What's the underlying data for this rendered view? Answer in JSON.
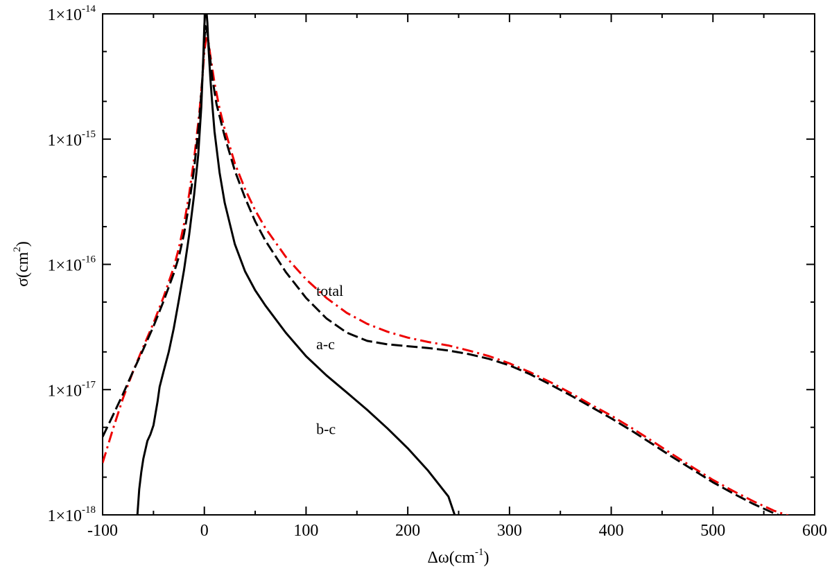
{
  "chart_data": {
    "type": "line",
    "title": "",
    "xlabel": {
      "main": "Δω(cm",
      "sup": "-1",
      "close": ")"
    },
    "ylabel": {
      "main": "σ(cm",
      "sup": "2",
      "close": ")"
    },
    "xlim": [
      -100,
      600
    ],
    "ylim": [
      1e-18,
      1e-14
    ],
    "yscale": "log",
    "grid": false,
    "x_ticks": [
      -100,
      0,
      100,
      200,
      300,
      400,
      500,
      600
    ],
    "x_tick_labels": [
      "-100",
      "0",
      "100",
      "200",
      "300",
      "400",
      "500",
      "600"
    ],
    "y_ticks": [
      {
        "value": 1e-18,
        "base": "1×10",
        "exp": "-18"
      },
      {
        "value": 1e-17,
        "base": "1×10",
        "exp": "-17"
      },
      {
        "value": 1e-16,
        "base": "1×10",
        "exp": "-16"
      },
      {
        "value": 1e-15,
        "base": "1×10",
        "exp": "-15"
      },
      {
        "value": 1e-14,
        "base": "1×10",
        "exp": "-14"
      }
    ],
    "annotations": [
      {
        "text": "total",
        "x": 110,
        "y": 5.6e-17
      },
      {
        "text": "a-c",
        "x": 110,
        "y": 2.1e-17
      },
      {
        "text": "b-c",
        "x": 110,
        "y": 4.4e-18
      }
    ],
    "series": [
      {
        "key": "total",
        "color": "#ee0000",
        "dash": "dashdot",
        "points": [
          [
            -100,
            2.6e-18
          ],
          [
            -90,
            4.8e-18
          ],
          [
            -80,
            8.5e-18
          ],
          [
            -70,
            1.4e-17
          ],
          [
            -60,
            2.2e-17
          ],
          [
            -50,
            3.4e-17
          ],
          [
            -40,
            5.5e-17
          ],
          [
            -30,
            9.5e-17
          ],
          [
            -25,
            1.35e-16
          ],
          [
            -20,
            2.1e-16
          ],
          [
            -15,
            3.6e-16
          ],
          [
            -10,
            7e-16
          ],
          [
            -5,
            1.6e-15
          ],
          [
            -2,
            3e-15
          ],
          [
            0,
            5e-15
          ],
          [
            2,
            6.4e-15
          ],
          [
            4,
            6e-15
          ],
          [
            6,
            4.6e-15
          ],
          [
            10,
            2.8e-15
          ],
          [
            15,
            1.75e-15
          ],
          [
            20,
            1.2e-15
          ],
          [
            30,
            6.4e-16
          ],
          [
            40,
            4e-16
          ],
          [
            50,
            2.7e-16
          ],
          [
            60,
            1.95e-16
          ],
          [
            80,
            1.15e-16
          ],
          [
            100,
            7.6e-17
          ],
          [
            120,
            5.4e-17
          ],
          [
            140,
            4.1e-17
          ],
          [
            160,
            3.35e-17
          ],
          [
            180,
            2.9e-17
          ],
          [
            200,
            2.6e-17
          ],
          [
            220,
            2.4e-17
          ],
          [
            240,
            2.25e-17
          ],
          [
            260,
            2.05e-17
          ],
          [
            280,
            1.85e-17
          ],
          [
            300,
            1.62e-17
          ],
          [
            320,
            1.38e-17
          ],
          [
            340,
            1.15e-17
          ],
          [
            360,
            9.4e-18
          ],
          [
            380,
            7.6e-18
          ],
          [
            400,
            6.2e-18
          ],
          [
            420,
            4.95e-18
          ],
          [
            440,
            3.9e-18
          ],
          [
            460,
            3.05e-18
          ],
          [
            480,
            2.4e-18
          ],
          [
            500,
            1.9e-18
          ],
          [
            520,
            1.55e-18
          ],
          [
            540,
            1.28e-18
          ],
          [
            560,
            1.08e-18
          ],
          [
            575,
            9.8e-19
          ]
        ]
      },
      {
        "key": "a-c",
        "color": "#000000",
        "dash": "dashed",
        "points": [
          [
            -100,
            4.2e-18
          ],
          [
            -90,
            6.2e-18
          ],
          [
            -80,
            9.2e-18
          ],
          [
            -70,
            1.4e-17
          ],
          [
            -60,
            2.1e-17
          ],
          [
            -50,
            3.2e-17
          ],
          [
            -40,
            5.1e-17
          ],
          [
            -30,
            8.5e-17
          ],
          [
            -25,
            1.15e-16
          ],
          [
            -20,
            1.75e-16
          ],
          [
            -15,
            3e-16
          ],
          [
            -10,
            5.8e-16
          ],
          [
            -5,
            1.4e-15
          ],
          [
            -2,
            3e-15
          ],
          [
            0,
            6e-15
          ],
          [
            1,
            8e-15
          ],
          [
            3,
            7e-15
          ],
          [
            5,
            5e-15
          ],
          [
            8,
            3e-15
          ],
          [
            12,
            1.9e-15
          ],
          [
            20,
            1.05e-15
          ],
          [
            30,
            5.6e-16
          ],
          [
            40,
            3.4e-16
          ],
          [
            50,
            2.2e-16
          ],
          [
            60,
            1.55e-16
          ],
          [
            80,
            8.7e-17
          ],
          [
            100,
            5.4e-17
          ],
          [
            120,
            3.7e-17
          ],
          [
            140,
            2.85e-17
          ],
          [
            160,
            2.45e-17
          ],
          [
            180,
            2.3e-17
          ],
          [
            200,
            2.22e-17
          ],
          [
            220,
            2.15e-17
          ],
          [
            240,
            2.05e-17
          ],
          [
            260,
            1.92e-17
          ],
          [
            280,
            1.76e-17
          ],
          [
            300,
            1.56e-17
          ],
          [
            320,
            1.33e-17
          ],
          [
            340,
            1.1e-17
          ],
          [
            360,
            9e-18
          ],
          [
            380,
            7.3e-18
          ],
          [
            400,
            5.9e-18
          ],
          [
            420,
            4.7e-18
          ],
          [
            440,
            3.7e-18
          ],
          [
            460,
            2.9e-18
          ],
          [
            480,
            2.3e-18
          ],
          [
            500,
            1.82e-18
          ],
          [
            520,
            1.48e-18
          ],
          [
            540,
            1.22e-18
          ],
          [
            560,
            1.03e-18
          ],
          [
            570,
            9.6e-19
          ]
        ]
      },
      {
        "key": "b-c",
        "color": "#000000",
        "dash": "solid",
        "points": [
          [
            -66,
            9.5e-19
          ],
          [
            -64,
            1.6e-18
          ],
          [
            -62,
            2.2e-18
          ],
          [
            -60,
            2.8e-18
          ],
          [
            -56,
            3.9e-18
          ],
          [
            -53,
            4.4e-18
          ],
          [
            -50,
            5.2e-18
          ],
          [
            -46,
            8e-18
          ],
          [
            -44,
            1.05e-17
          ],
          [
            -40,
            1.4e-17
          ],
          [
            -35,
            2e-17
          ],
          [
            -30,
            3.1e-17
          ],
          [
            -25,
            5.2e-17
          ],
          [
            -20,
            9e-17
          ],
          [
            -15,
            1.7e-16
          ],
          [
            -10,
            3.6e-16
          ],
          [
            -6,
            7.5e-16
          ],
          [
            -3,
            1.8e-15
          ],
          [
            -1,
            4.5e-15
          ],
          [
            0,
            8e-15
          ],
          [
            1,
            1.1e-14
          ],
          [
            2,
            1.08e-14
          ],
          [
            3,
            8.5e-15
          ],
          [
            4,
            5.5e-15
          ],
          [
            6,
            3e-15
          ],
          [
            8,
            1.8e-15
          ],
          [
            10,
            1.15e-15
          ],
          [
            15,
            5.4e-16
          ],
          [
            20,
            3.1e-16
          ],
          [
            30,
            1.45e-16
          ],
          [
            40,
            8.8e-17
          ],
          [
            50,
            6.2e-17
          ],
          [
            60,
            4.7e-17
          ],
          [
            80,
            2.85e-17
          ],
          [
            100,
            1.85e-17
          ],
          [
            120,
            1.3e-17
          ],
          [
            140,
            9.5e-18
          ],
          [
            160,
            6.9e-18
          ],
          [
            180,
            4.9e-18
          ],
          [
            200,
            3.4e-18
          ],
          [
            220,
            2.25e-18
          ],
          [
            240,
            1.4e-18
          ],
          [
            247,
            9.5e-19
          ]
        ]
      }
    ]
  }
}
